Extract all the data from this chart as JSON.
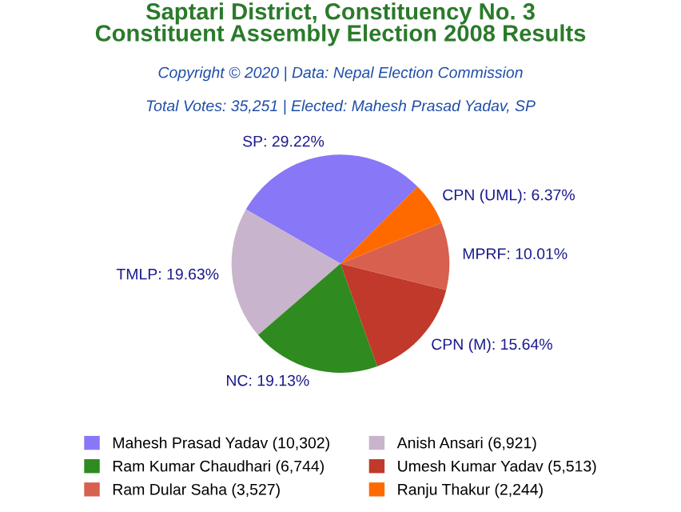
{
  "chart_data": {
    "type": "pie",
    "title": "Saptari District, Constituency No. 3\nConstituent Assembly Election 2008 Results",
    "subtitle": "Copyright © 2020 | Data: Nepal Election Commission",
    "annotations": [
      "Total Votes: 35,251 | Elected: Mahesh Prasad Yadav, SP"
    ],
    "categories": [
      "Mahesh Prasad Yadav (10,302)",
      "Anish Ansari (6,921)",
      "Ram Kumar Chaudhari (6,744)",
      "Umesh Kumar Yadav (5,513)",
      "Ram Dular Saha (3,527)",
      "Ranju Thakur (2,244)"
    ],
    "values": [
      29.22,
      19.63,
      19.13,
      15.64,
      10.01,
      6.37
    ],
    "value_labels": [
      "SP: 29.22%",
      "TMLP: 19.63%",
      "NC: 19.13%",
      "CPN (M): 15.64%",
      "MPRF: 10.01%",
      "CPN (UML): 6.37%"
    ],
    "colors": [
      "#8877f7",
      "#c8b4cc",
      "#2f8a1f",
      "#c0392b",
      "#d7604e",
      "#ff6a00"
    ],
    "legend": "bottom"
  }
}
